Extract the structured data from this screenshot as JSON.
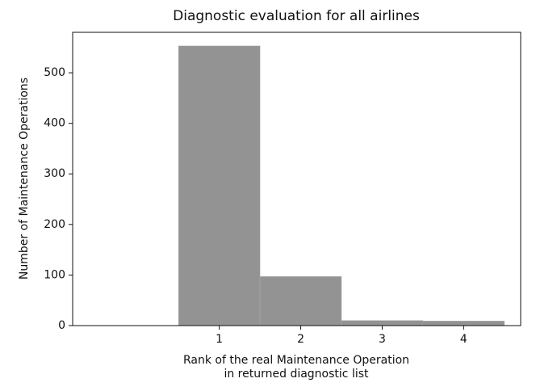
{
  "chart_data": {
    "type": "histogram",
    "title": "Diagnostic evaluation for all airlines",
    "xlabel": [
      "Rank of the real Maintenance Operation",
      "in returned diagnostic list"
    ],
    "ylabel": "Number of Maintenance Operations",
    "bins": [
      0.5,
      1.5,
      2.5,
      3.5,
      4.5
    ],
    "counts": [
      553,
      97,
      10,
      9
    ],
    "color": "#939393",
    "xlim": [
      -0.8,
      4.7
    ],
    "ylim": [
      0,
      580
    ],
    "xticks": [
      1,
      2,
      3,
      4
    ],
    "yticks": [
      0,
      100,
      200,
      300,
      400,
      500
    ],
    "grid": false
  }
}
